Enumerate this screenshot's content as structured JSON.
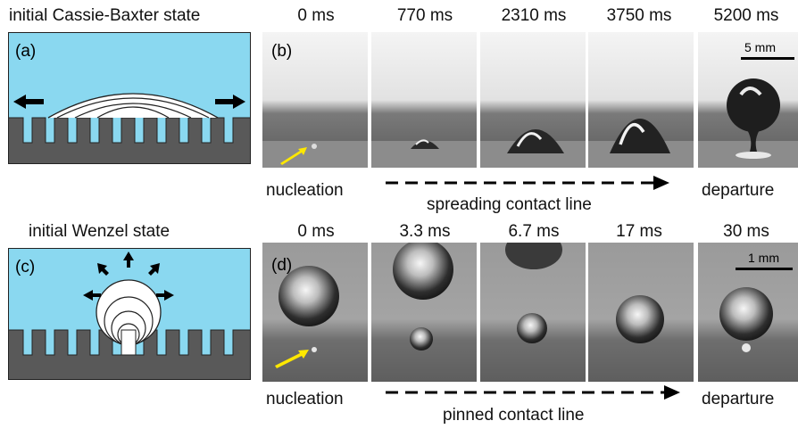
{
  "titles": {
    "top_left": "initial Cassie-Baxter state",
    "bottom_left": "initial Wenzel state"
  },
  "panels": {
    "a": "(a)",
    "b": "(b)",
    "c": "(c)",
    "d": "(d)"
  },
  "row_b": {
    "times": [
      "0 ms",
      "770 ms",
      "2310 ms",
      "3750 ms",
      "5200 ms"
    ],
    "scale_bar": "5 mm",
    "label_left": "nucleation",
    "label_middle": "spreading contact line",
    "label_right": "departure"
  },
  "row_d": {
    "times": [
      "0 ms",
      "3.3 ms",
      "6.7 ms",
      "17 ms",
      "30 ms"
    ],
    "scale_bar": "1 mm",
    "label_left": "nucleation",
    "label_middle": "pinned contact line",
    "label_right": "departure"
  },
  "colors": {
    "water": "#8ad8f0",
    "substrate": "#595959",
    "arrow_yellow": "#ffe800"
  }
}
